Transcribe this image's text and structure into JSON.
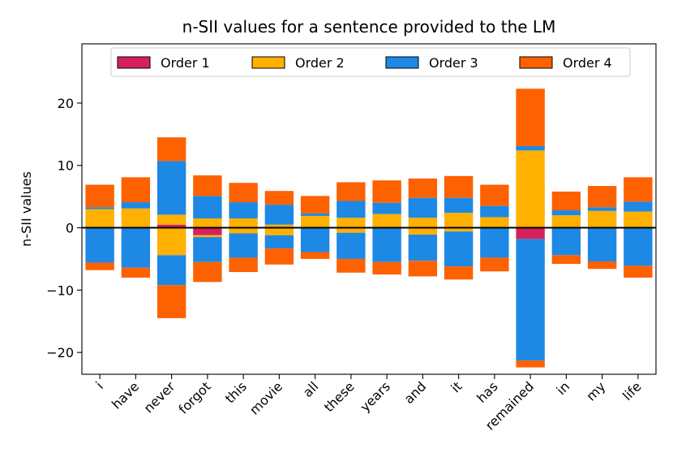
{
  "chart_data": {
    "type": "bar",
    "stacked": true,
    "diverging": true,
    "title": "n-SII values for a sentence provided to the LM",
    "xlabel": "",
    "ylabel": "n-SII values",
    "ylim": [
      -23.5,
      29.5
    ],
    "yticks": [
      -20,
      -10,
      0,
      10,
      20
    ],
    "ytick_labels": [
      "−20",
      "−10",
      "0",
      "10",
      "20"
    ],
    "grid": false,
    "legend_position": "top-center",
    "categories": [
      "i",
      "have",
      "never",
      "forgot",
      "this",
      "movie",
      "all",
      "these",
      "years",
      "and",
      "it",
      "has",
      "remained",
      "in",
      "my",
      "life"
    ],
    "series": [
      {
        "name": "Order 1",
        "color": "#d6215b",
        "positive": [
          0,
          0,
          0.5,
          0,
          0,
          0,
          0,
          0,
          0,
          0,
          0,
          0,
          0,
          0,
          0,
          0
        ],
        "negative": [
          0,
          0,
          0,
          -1.2,
          0,
          0,
          0,
          0,
          0,
          0,
          0,
          0,
          -1.8,
          0,
          0,
          0
        ]
      },
      {
        "name": "Order 2",
        "color": "#ffb000",
        "positive": [
          3.0,
          3.1,
          1.6,
          1.5,
          1.5,
          0.5,
          1.9,
          1.6,
          2.2,
          1.6,
          2.4,
          1.7,
          12.4,
          2.0,
          2.7,
          2.6
        ],
        "negative": [
          0,
          0,
          -4.4,
          -0.3,
          -0.9,
          -1.2,
          0,
          -0.8,
          0,
          -1.1,
          -0.6,
          0,
          0,
          0,
          0,
          0
        ]
      },
      {
        "name": "Order 3",
        "color": "#1e88e5",
        "positive": [
          0.3,
          1.0,
          8.6,
          3.6,
          2.6,
          3.2,
          0.4,
          2.7,
          1.8,
          3.2,
          2.4,
          1.8,
          0.7,
          0.8,
          0.6,
          1.6
        ],
        "negative": [
          -5.6,
          -6.4,
          -4.8,
          -4.0,
          -3.9,
          -2.1,
          -3.9,
          -4.2,
          -5.5,
          -4.2,
          -5.6,
          -4.8,
          -19.5,
          -4.4,
          -5.4,
          -6.1
        ]
      },
      {
        "name": "Order 4",
        "color": "#fe6100",
        "positive": [
          3.6,
          4.0,
          3.8,
          3.3,
          3.1,
          2.2,
          2.8,
          3.0,
          3.6,
          3.1,
          3.5,
          3.4,
          9.2,
          3.0,
          3.4,
          3.9
        ],
        "negative": [
          -1.2,
          -1.6,
          -5.3,
          -3.2,
          -2.3,
          -2.6,
          -1.1,
          -2.2,
          -2.0,
          -2.5,
          -2.1,
          -2.2,
          -1.1,
          -1.4,
          -1.2,
          -1.9
        ]
      }
    ]
  }
}
